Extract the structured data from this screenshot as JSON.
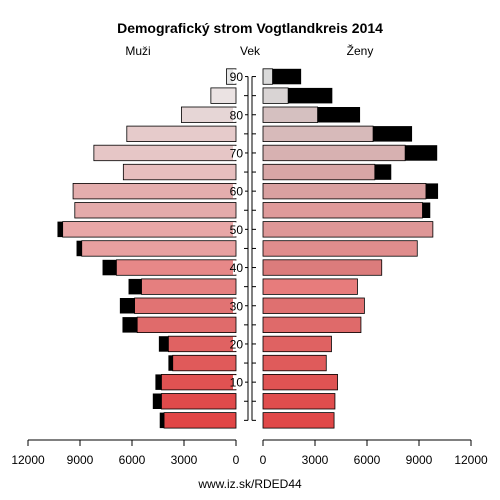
{
  "chart_data": {
    "type": "bar",
    "orientation": "horizontal",
    "title": "Demografický strom Vogtlandkreis 2014",
    "left_label": "Muži",
    "center_label": "Vek",
    "right_label": "Ženy",
    "source": "www.iz.sk/RDED44",
    "age_groups": [
      "0",
      "5",
      "10",
      "15",
      "20",
      "25",
      "30",
      "35",
      "40",
      "45",
      "50",
      "55",
      "60",
      "65",
      "70",
      "75",
      "80",
      "85",
      "90"
    ],
    "age_ticks": [
      "10",
      "20",
      "30",
      "40",
      "50",
      "60",
      "70",
      "80",
      "90"
    ],
    "x_ticks_left": [
      "12000",
      "9000",
      "6000",
      "3000",
      "0"
    ],
    "x_ticks_right": [
      "0",
      "3000",
      "6000",
      "9000",
      "12000"
    ],
    "xlim": [
      0,
      12000
    ],
    "surplus_color": "#000000",
    "series": [
      {
        "name": "Muži",
        "side": "left",
        "values": [
          4150,
          4300,
          4300,
          3650,
          3900,
          5700,
          5850,
          5450,
          6900,
          8900,
          10000,
          9300,
          9400,
          6500,
          8200,
          6300,
          3150,
          1450,
          550
        ],
        "surplus": [
          250,
          500,
          350,
          250,
          550,
          850,
          850,
          750,
          800,
          300,
          300,
          0,
          0,
          0,
          0,
          0,
          0,
          0,
          0
        ],
        "colors": [
          "#e14646",
          "#e04a4b",
          "#e05252",
          "#e05a5a",
          "#e06262",
          "#e06b6b",
          "#e17373",
          "#e57f7f",
          "#e78888",
          "#e8a0a0",
          "#e8a7a7",
          "#e4aaaa",
          "#e4adad",
          "#e7bebe",
          "#e6c6c6",
          "#e6cbcb",
          "#e6d6d6",
          "#ebe3e3",
          "#e6e6e6"
        ]
      },
      {
        "name": "Ženy",
        "side": "right",
        "values": [
          4100,
          4150,
          4300,
          3650,
          3950,
          5650,
          5850,
          5450,
          6850,
          8900,
          9800,
          9200,
          9400,
          6450,
          8200,
          6350,
          3150,
          1450,
          550
        ],
        "surplus": [
          0,
          0,
          0,
          0,
          0,
          0,
          0,
          0,
          0,
          0,
          0,
          450,
          700,
          950,
          1850,
          2250,
          2450,
          2550,
          1650
        ],
        "colors": [
          "#e04848",
          "#e04d4d",
          "#df5353",
          "#df5b5b",
          "#df6262",
          "#df6a6a",
          "#df7070",
          "#e77c7c",
          "#db7c7c",
          "#e08d8d",
          "#de9797",
          "#df9a9a",
          "#d9a0a0",
          "#d8a6a6",
          "#d7b1b1",
          "#d7baba",
          "#d5c0c0",
          "#d9d4d4",
          "#dadada"
        ]
      }
    ]
  }
}
